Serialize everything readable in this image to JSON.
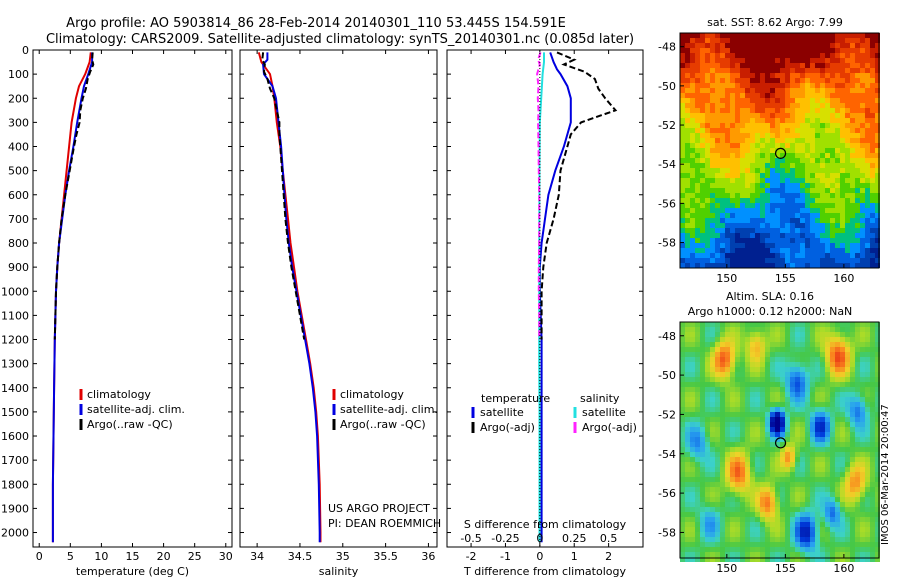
{
  "header": {
    "line1": "Argo profile: AO 5903814_86 28-Feb-2014 20140301_110 53.445S 154.591E",
    "line2": "Climatology: CARS2009. Satellite-adjusted climatology: synTS_20140301.nc (0.085d later)"
  },
  "depth_ticks": [
    "0",
    "100",
    "200",
    "300",
    "400",
    "500",
    "600",
    "700",
    "800",
    "900",
    "1000",
    "1100",
    "1200",
    "1300",
    "1400",
    "1500",
    "1600",
    "1700",
    "1800",
    "1900",
    "2000"
  ],
  "colors": {
    "climatology": "#e00000",
    "satellite": "#0000e0",
    "argo": "#000000",
    "cyan": "#22e0e0",
    "magenta": "#ff22ff"
  },
  "chart_data": [
    {
      "type": "line",
      "name": "temperature",
      "xlabel": "temperature (deg C)",
      "xlim": [
        -1,
        31
      ],
      "ylim": [
        2060,
        0
      ],
      "xticks": [
        0,
        5,
        10,
        15,
        20,
        25,
        30
      ],
      "legend": [
        "climatology",
        "satellite-adj. clim.",
        "Argo(..raw -QC)"
      ],
      "series": [
        {
          "name": "climatology",
          "color": "#e00000",
          "depth": [
            10,
            50,
            100,
            150,
            200,
            300,
            400,
            500,
            600,
            700,
            800,
            900,
            1000,
            1200,
            1400,
            1600,
            1800,
            2000,
            2040
          ],
          "values": [
            8.3,
            8.1,
            7.4,
            6.4,
            5.9,
            5.2,
            4.8,
            4.4,
            4.0,
            3.6,
            3.2,
            2.9,
            2.7,
            2.5,
            2.4,
            2.3,
            2.2,
            2.2,
            2.2
          ]
        },
        {
          "name": "satellite-adj. clim.",
          "color": "#0000e0",
          "depth": [
            10,
            50,
            100,
            150,
            200,
            300,
            400,
            500,
            600,
            700,
            800,
            900,
            1000,
            1200,
            1400,
            1600,
            1800,
            2000,
            2040
          ],
          "values": [
            8.5,
            8.5,
            7.9,
            7.2,
            6.8,
            6.1,
            5.5,
            4.8,
            4.2,
            3.7,
            3.2,
            2.9,
            2.7,
            2.5,
            2.4,
            2.3,
            2.2,
            2.2,
            2.2
          ]
        },
        {
          "name": "Argo(..raw -QC)",
          "color": "#000000",
          "dashed": true,
          "depth": [
            10,
            40,
            60,
            90,
            120,
            160,
            200,
            250,
            300,
            350,
            400,
            500,
            600,
            700,
            800,
            900,
            1000,
            1100,
            1200
          ],
          "values": [
            8.6,
            8.5,
            8.7,
            8.2,
            7.8,
            7.5,
            7.0,
            6.6,
            6.5,
            6.0,
            5.6,
            4.9,
            4.2,
            3.6,
            3.2,
            2.9,
            2.7,
            2.6,
            2.5
          ]
        }
      ]
    },
    {
      "type": "line",
      "name": "salinity",
      "xlabel": "salinity",
      "xlim": [
        33.8,
        36.1
      ],
      "ylim": [
        2060,
        0
      ],
      "xticks": [
        34,
        34.5,
        35,
        35.5,
        36
      ],
      "legend": [
        "climatology",
        "satellite-adj. clim.",
        "Argo(..raw -QC)"
      ],
      "annotations": [
        "US ARGO PROJECT",
        "PI: DEAN ROEMMICH"
      ],
      "series": [
        {
          "name": "climatology",
          "color": "#e00000",
          "depth": [
            10,
            50,
            100,
            150,
            200,
            300,
            400,
            500,
            600,
            700,
            800,
            900,
            1000,
            1100,
            1200,
            1300,
            1400,
            1500,
            1600,
            1800,
            2000,
            2040
          ],
          "values": [
            34.02,
            34.05,
            34.15,
            34.18,
            34.2,
            34.23,
            34.27,
            34.3,
            34.33,
            34.36,
            34.39,
            34.43,
            34.47,
            34.52,
            34.57,
            34.62,
            34.66,
            34.69,
            34.71,
            34.73,
            34.74,
            34.74
          ]
        },
        {
          "name": "satellite-adj. clim.",
          "color": "#0000e0",
          "depth": [
            10,
            40,
            60,
            100,
            150,
            200,
            300,
            400,
            500,
            600,
            700,
            800,
            900,
            1000,
            1100,
            1200,
            1300,
            1400,
            1500,
            1600,
            1800,
            2000,
            2040
          ],
          "values": [
            34.12,
            34.12,
            34.07,
            34.08,
            34.18,
            34.22,
            34.25,
            34.28,
            34.3,
            34.32,
            34.34,
            34.37,
            34.41,
            34.46,
            34.51,
            34.56,
            34.61,
            34.65,
            34.68,
            34.7,
            34.72,
            34.73,
            34.73
          ]
        },
        {
          "name": "Argo(..raw -QC)",
          "color": "#000000",
          "dashed": true,
          "depth": [
            10,
            40,
            60,
            90,
            120,
            160,
            200,
            250,
            300,
            350,
            400,
            500,
            600,
            700,
            800,
            900,
            1000,
            1100,
            1200
          ],
          "values": [
            34.07,
            34.06,
            34.09,
            34.08,
            34.12,
            34.15,
            34.2,
            34.23,
            34.26,
            34.26,
            34.27,
            34.29,
            34.31,
            34.33,
            34.36,
            34.4,
            34.45,
            34.5,
            34.55
          ]
        }
      ]
    },
    {
      "type": "line",
      "name": "difference",
      "xlabel": "T difference from climatology",
      "xlabel_top": "S difference from climatology",
      "xlim": [
        -2.7,
        3.0
      ],
      "ylim": [
        2060,
        0
      ],
      "xticks": [
        -2,
        -1,
        0,
        1,
        2
      ],
      "xticks_top": [
        {
          "v": -0.5,
          "l": "-0.5"
        },
        {
          "v": -0.25,
          "l": "-0.25"
        },
        {
          "v": 0,
          "l": "0"
        },
        {
          "v": 0.25,
          "l": "0.25"
        },
        {
          "v": 0.5,
          "l": "0.5"
        }
      ],
      "legend_temperature": {
        "title": "temperature",
        "items": [
          "satellite",
          "Argo(-adj)"
        ]
      },
      "legend_salinity": {
        "title": "salinity",
        "items": [
          "satellite",
          "Argo(-adj)"
        ]
      },
      "series": [
        {
          "name": "T satellite",
          "color": "#0000e0",
          "depth": [
            10,
            50,
            80,
            100,
            150,
            200,
            300,
            400,
            500,
            600,
            700,
            800,
            900,
            1000,
            1200,
            1500,
            1800,
            2000,
            2040
          ],
          "values": [
            0.3,
            0.4,
            0.5,
            0.6,
            0.8,
            0.9,
            0.9,
            0.7,
            0.45,
            0.25,
            0.15,
            0.05,
            0.0,
            0.0,
            0.05,
            0.05,
            0.05,
            0.05,
            0.05
          ]
        },
        {
          "name": "T Argo(-adj)",
          "color": "#000000",
          "dashed": true,
          "depth": [
            10,
            40,
            60,
            90,
            120,
            160,
            200,
            250,
            300,
            350,
            400,
            500,
            600,
            700,
            800,
            900,
            1000,
            1100,
            1200
          ],
          "values": [
            0.5,
            1.0,
            0.7,
            1.3,
            1.6,
            1.7,
            1.9,
            2.2,
            1.2,
            0.9,
            0.8,
            0.6,
            0.55,
            0.4,
            0.2,
            0.1,
            0.05,
            0.05,
            0.05
          ]
        },
        {
          "name": "S satellite",
          "color": "#22e0e0",
          "depth": [
            10,
            50,
            100,
            150,
            200,
            300,
            500,
            700,
            900,
            1100,
            1300,
            1500,
            1700,
            1900,
            2040
          ],
          "values": [
            0.12,
            0.12,
            0.08,
            0.06,
            0.04,
            0.0,
            -0.01,
            -0.015,
            -0.02,
            -0.02,
            -0.02,
            -0.01,
            -0.01,
            -0.01,
            -0.01
          ]
        },
        {
          "name": "S Argo(-adj)",
          "color": "#ff22ff",
          "dashed": true,
          "depth": [
            10,
            40,
            60,
            100,
            150,
            200,
            250,
            300,
            400,
            500,
            600,
            700,
            800,
            900,
            1000,
            1100,
            1200
          ],
          "values": [
            0.02,
            -0.05,
            0.0,
            -0.08,
            -0.04,
            -0.06,
            -0.04,
            -0.05,
            -0.04,
            -0.03,
            -0.02,
            -0.02,
            -0.02,
            -0.03,
            -0.03,
            -0.02,
            -0.02
          ]
        }
      ]
    }
  ],
  "maps": [
    {
      "title": "sat. SST: 8.62 Argo: 7.99",
      "xticks": [
        "150",
        "155",
        "160"
      ],
      "yticks": [
        "-48",
        "-50",
        "-52",
        "-54",
        "-56",
        "-58"
      ],
      "lon_range": [
        146,
        163
      ],
      "lat_range": [
        -59.3,
        -47.3
      ],
      "marker": {
        "lon": 154.591,
        "lat": -53.445
      },
      "colors": [
        "#8b0000",
        "#c81e00",
        "#e63c00",
        "#ff6400",
        "#ff9a00",
        "#ffc000",
        "#d7e000",
        "#a0e000",
        "#50d000",
        "#00c080",
        "#0090ff",
        "#0060e0",
        "#0040b0",
        "#002090"
      ]
    },
    {
      "title_line1": "Altim. SLA: 0.16",
      "title_line2": "Argo h1000: 0.12 h2000: NaN",
      "xticks": [
        "150",
        "155",
        "160"
      ],
      "yticks": [
        "-48",
        "-50",
        "-52",
        "-54",
        "-56",
        "-58"
      ],
      "side_label": "IMOS 06-Mar-2014 20:00:47",
      "marker": {
        "lon": 154.591,
        "lat": -53.445
      }
    }
  ]
}
